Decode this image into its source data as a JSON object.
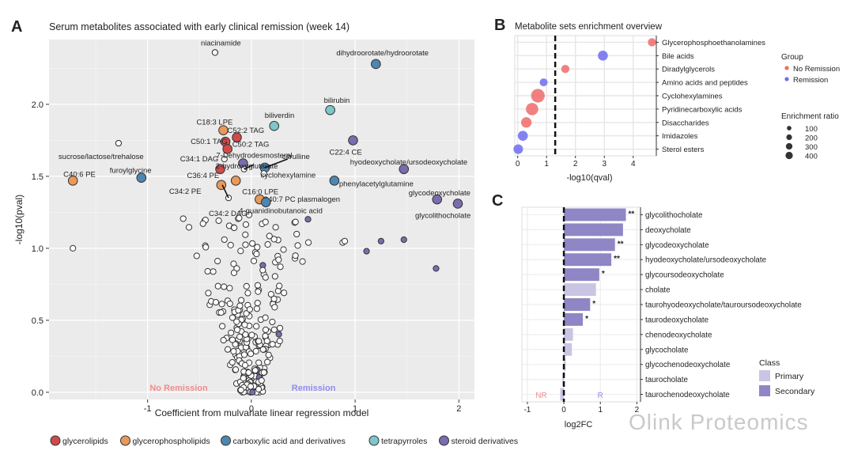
{
  "watermark": "Olink Proteomics",
  "chart_data": [
    {
      "panel": "A",
      "type": "scatter",
      "title": "Serum metabolites associated with early clinical remission (week 14)",
      "xlabel": "Coefficient from mulvariate linear regression model",
      "ylabel": "-log10(pval)",
      "xlim": [
        -1.95,
        2.15
      ],
      "ylim": [
        -0.05,
        2.45
      ],
      "xticks": [
        -1,
        0,
        1,
        2
      ],
      "yticks": [
        0.0,
        0.5,
        1.0,
        1.5,
        2.0
      ],
      "ytick_labels": [
        "0.0",
        "0.5",
        "1.0",
        "1.5",
        "2.0"
      ],
      "region_labels": {
        "left": "No Remission",
        "right": "Remission"
      },
      "legend": [
        {
          "label": "glycerolipids",
          "color": "#cf4b4b"
        },
        {
          "label": "glycerophospholipids",
          "color": "#e8995a"
        },
        {
          "label": "carboxylic acid and derivatives",
          "color": "#4f86b0"
        },
        {
          "label": "tetrapyrroles",
          "color": "#7ec6c9"
        },
        {
          "label": "steroid derivatives",
          "color": "#7b6cae"
        }
      ],
      "labeled_points": [
        {
          "label": "niacinamide",
          "x": -0.35,
          "y": 2.36,
          "class": "none"
        },
        {
          "label": "dihydroorotate/hydroorotate",
          "x": 1.2,
          "y": 2.28,
          "class": "carboxylic"
        },
        {
          "label": "bilirubin",
          "x": 0.76,
          "y": 1.96,
          "class": "tetrapyrroles"
        },
        {
          "label": "biliverdin",
          "x": 0.22,
          "y": 1.85,
          "class": "tetrapyrroles"
        },
        {
          "label": "C18:3 LPE",
          "x": -0.27,
          "y": 1.82,
          "class": "glycerophospholipids"
        },
        {
          "label": "C52:2 TAG",
          "x": -0.14,
          "y": 1.77,
          "class": "glycerolipids"
        },
        {
          "label": "C50:1 TAG",
          "x": -0.25,
          "y": 1.74,
          "class": "glycerolipids"
        },
        {
          "label": "C50:2 TAG",
          "x": -0.23,
          "y": 1.69,
          "class": "glycerolipids"
        },
        {
          "label": "sucrose/lactose/trehalose",
          "x": -1.28,
          "y": 1.73,
          "class": "none"
        },
        {
          "label": "C22:4 CE",
          "x": 0.98,
          "y": 1.75,
          "class": "steroid"
        },
        {
          "label": "C34:1 DAG",
          "x": -0.26,
          "y": 1.62,
          "class": "none"
        },
        {
          "label": "7-Dehydrodesmosterol",
          "x": -0.08,
          "y": 1.59,
          "class": "steroid"
        },
        {
          "label": "citrulline",
          "x": 0.13,
          "y": 1.56,
          "class": "carboxylic"
        },
        {
          "label": "C36:4 PE",
          "x": -0.3,
          "y": 1.55,
          "class": "glycerolipids"
        },
        {
          "label": "2-hydroxyglutarate",
          "x": -0.07,
          "y": 1.55,
          "class": "none"
        },
        {
          "label": "cyclohexylamine",
          "x": 0.12,
          "y": 1.52,
          "class": "none"
        },
        {
          "label": "hyodeoxycholate/ursodeoxycholate",
          "x": 1.47,
          "y": 1.55,
          "class": "steroid"
        },
        {
          "label": "C40:6 PE",
          "x": -1.72,
          "y": 1.47,
          "class": "glycerophospholipids"
        },
        {
          "label": "furoylglycine",
          "x": -1.06,
          "y": 1.49,
          "class": "carboxylic"
        },
        {
          "label": "C16:0 LPE",
          "x": -0.15,
          "y": 1.47,
          "class": "glycerophospholipids"
        },
        {
          "label": "phenylacetylglutamine",
          "x": 0.8,
          "y": 1.47,
          "class": "carboxylic"
        },
        {
          "label": "C34:2 PE",
          "x": -0.29,
          "y": 1.44,
          "class": "glycerophospholipids"
        },
        {
          "label": "C34:2 DAG",
          "x": -0.22,
          "y": 1.35,
          "class": "none"
        },
        {
          "label": "C40:7 PC plasmalogen",
          "x": 0.08,
          "y": 1.34,
          "class": "glycerophospholipids"
        },
        {
          "label": "glycodeoxycholate",
          "x": 1.79,
          "y": 1.34,
          "class": "steroid"
        },
        {
          "label": "4-guanidinobutanoic acid",
          "x": 0.14,
          "y": 1.32,
          "class": "carboxylic"
        },
        {
          "label": "glycolithocholate",
          "x": 1.99,
          "y": 1.31,
          "class": "steroid"
        }
      ]
    },
    {
      "panel": "B",
      "type": "scatter",
      "title": "Metabolite sets enrichment overview",
      "xlabel": "-log10(qval)",
      "xlim": [
        -0.1,
        4.8
      ],
      "xticks": [
        0,
        1,
        2,
        3,
        4
      ],
      "threshold_x": 1.3,
      "categories": [
        "Glycerophosphoethanolamines",
        "Bile acids",
        "Diradylglycerols",
        "Amino acids and peptides",
        "Cyclohexylamines",
        "Pyridinecarboxylic acids",
        "Disaccharides",
        "Imidazoles",
        "Sterol esters"
      ],
      "points": [
        {
          "name": "Glycerophosphoethanolamines",
          "x": 4.65,
          "group": "No Remission",
          "ratio": 100
        },
        {
          "name": "Bile acids",
          "x": 2.95,
          "group": "Remission",
          "ratio": 180
        },
        {
          "name": "Diradylglycerols",
          "x": 1.65,
          "group": "No Remission",
          "ratio": 100
        },
        {
          "name": "Amino acids and peptides",
          "x": 0.9,
          "group": "Remission",
          "ratio": 90
        },
        {
          "name": "Cyclohexylamines",
          "x": 0.7,
          "group": "No Remission",
          "ratio": 430
        },
        {
          "name": "Pyridinecarboxylic acids",
          "x": 0.5,
          "group": "No Remission",
          "ratio": 330
        },
        {
          "name": "Disaccharides",
          "x": 0.3,
          "group": "No Remission",
          "ratio": 210
        },
        {
          "name": "Imidazoles",
          "x": 0.18,
          "group": "Remission",
          "ratio": 180
        },
        {
          "name": "Sterol esters",
          "x": 0.02,
          "group": "Remission",
          "ratio": 160
        }
      ],
      "legend_group_title": "Group",
      "legend_groups": [
        {
          "label": "No Remission",
          "color": "#ef6b6b"
        },
        {
          "label": "Remission",
          "color": "#6f6cf0"
        }
      ],
      "legend_size_title": "Enrichment ratio",
      "legend_sizes": [
        100,
        200,
        300,
        400
      ]
    },
    {
      "panel": "C",
      "type": "bar",
      "orientation": "horizontal",
      "xlabel": "log2FC",
      "xlim": [
        -1.15,
        2.1
      ],
      "xticks": [
        -1,
        0,
        1,
        2
      ],
      "xtick_labels": [
        "-1",
        "0",
        "1",
        "2"
      ],
      "region_labels": {
        "left": "NR",
        "right": "R"
      },
      "categories": [
        "glycolithocholate",
        "deoxycholate",
        "glycodeoxycholate",
        "hyodeoxycholate/ursodeoxycholate",
        "glycoursodeoxycholate",
        "cholate",
        "taurohyodeoxycholate/tauroursodeoxycholate",
        "taurodeoxycholate",
        "chenodeoxycholate",
        "glycocholate",
        "glycochenodeoxycholate",
        "taurocholate",
        "taurochenodeoxycholate"
      ],
      "values": [
        1.7,
        1.62,
        1.4,
        1.3,
        0.97,
        0.88,
        0.72,
        0.52,
        0.25,
        0.22,
        0.05,
        -0.04,
        -0.1
      ],
      "class": [
        "Secondary",
        "Secondary",
        "Secondary",
        "Secondary",
        "Secondary",
        "Primary",
        "Secondary",
        "Secondary",
        "Primary",
        "Primary",
        "Primary",
        "Primary",
        "Primary"
      ],
      "significance": [
        "**",
        "",
        "**",
        "**",
        "*",
        "",
        "*",
        "*",
        "",
        "",
        "",
        "",
        ""
      ],
      "legend_title": "Class",
      "legend": [
        {
          "label": "Primary",
          "color": "#c9c5e3"
        },
        {
          "label": "Secondary",
          "color": "#8f86c6"
        }
      ]
    }
  ],
  "panel_letters": [
    "A",
    "B",
    "C"
  ]
}
